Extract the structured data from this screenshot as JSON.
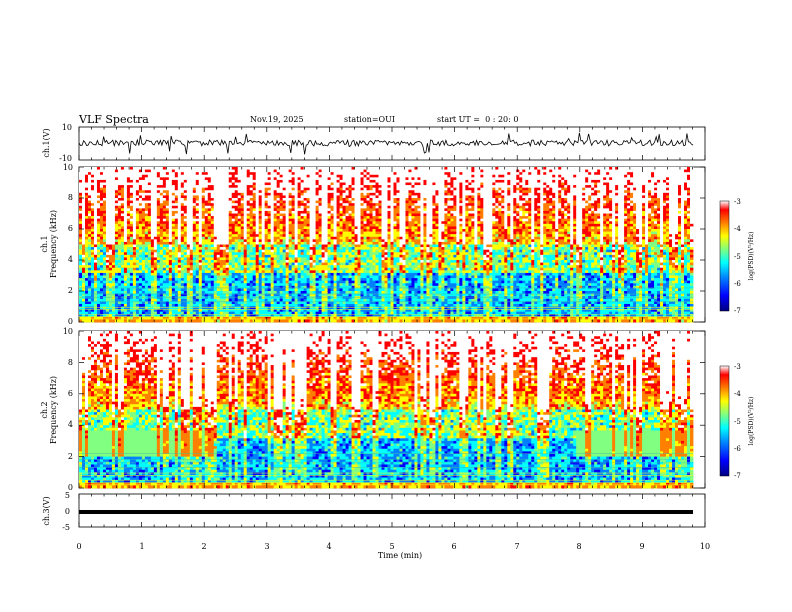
{
  "header": {
    "title": "VLF Spectra",
    "date": "Nov.19, 2025",
    "station": "station=OUI",
    "start_ut": "start UT =  0 : 20: 0"
  },
  "chart_data": [
    {
      "type": "line",
      "panel": "ch1-waveform",
      "ylabel": "ch.1(V)",
      "ylim": [
        -10,
        10
      ],
      "yticks": [
        "10",
        "-10"
      ],
      "xlim": [
        0,
        10
      ],
      "baseline": 0,
      "series": [
        {
          "values_range": [
            -4,
            4
          ],
          "color": "#000000"
        }
      ]
    },
    {
      "type": "heatmap",
      "panel": "ch1-spectrogram",
      "ylabel": "ch.1\nFrequency (kHz)",
      "ylabel_lines": [
        "ch.1",
        "Frequency (kHz)"
      ],
      "ylim": [
        0,
        10
      ],
      "yticks": [
        "0",
        "2",
        "4",
        "6",
        "8",
        "10"
      ],
      "xlim": [
        0,
        9.83
      ],
      "colorbar": {
        "label": "log(PSD)(V²/Hz)",
        "range": [
          -7,
          -3
        ],
        "ticks": [
          "-3",
          "-4",
          "-5",
          "-6",
          "-7"
        ]
      }
    },
    {
      "type": "heatmap",
      "panel": "ch2-spectrogram",
      "ylabel": "ch.2\nFrequency (kHz)",
      "ylabel_lines": [
        "ch.2",
        "Frequency (kHz)"
      ],
      "ylim": [
        0,
        10
      ],
      "yticks": [
        "0",
        "2",
        "4",
        "6",
        "8",
        "10"
      ],
      "xlim": [
        0,
        9.83
      ],
      "colorbar": {
        "label": "log(PSD)(V²/Hz)",
        "range": [
          -7,
          -3
        ],
        "ticks": [
          "-3",
          "-4",
          "-5",
          "-6",
          "-7"
        ]
      }
    },
    {
      "type": "line",
      "panel": "ch3-waveform",
      "ylabel": "ch.3(V)",
      "ylim": [
        -5,
        5
      ],
      "yticks": [
        "5",
        "0",
        "-5"
      ],
      "xlim": [
        0,
        10
      ],
      "series": [
        {
          "constant": -1.8,
          "color": "#000000"
        }
      ]
    }
  ],
  "xaxis": {
    "label": "Time (min)",
    "ticks": [
      "0",
      "1",
      "2",
      "3",
      "4",
      "5",
      "6",
      "7",
      "8",
      "9",
      "10"
    ]
  },
  "colormap": [
    "#000080",
    "#0000ff",
    "#0080ff",
    "#00ffff",
    "#80ff80",
    "#ffff00",
    "#ff8000",
    "#ff0000",
    "#ffffff"
  ]
}
